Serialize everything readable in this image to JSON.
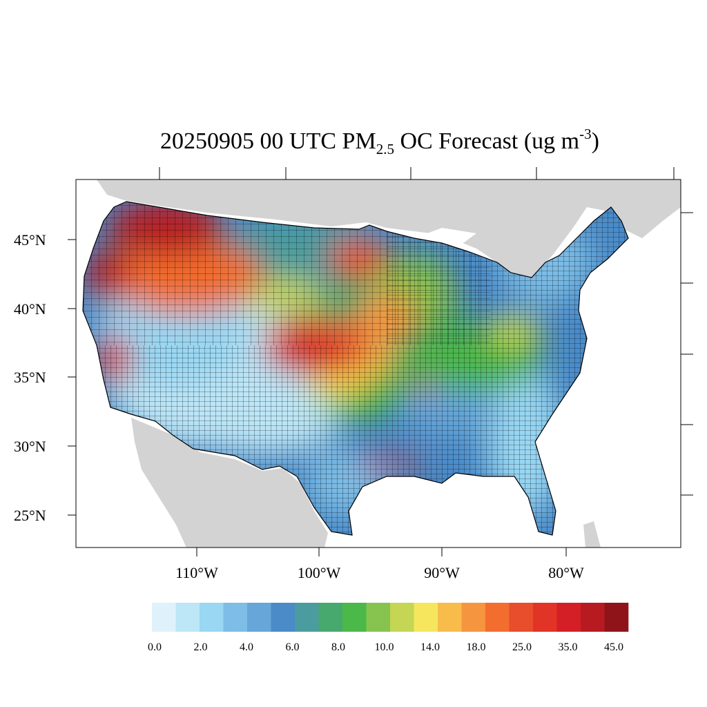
{
  "title": {
    "prefix": "20250905 00 UTC PM",
    "subscript": "2.5",
    "middle": " OC Forecast (ug m",
    "superscript": "-3",
    "suffix": ")"
  },
  "lat_labels": [
    "45°N",
    "40°N",
    "35°N",
    "30°N",
    "25°N"
  ],
  "lon_labels": [
    "110°W",
    "100°W",
    "90°W",
    "80°W"
  ],
  "colorbar": {
    "colors": [
      "#dff2fb",
      "#bde6f7",
      "#99d7f3",
      "#7dbde6",
      "#66a6d9",
      "#4a8bc8",
      "#4a9c9f",
      "#47a96d",
      "#4bb84a",
      "#86c44f",
      "#c4d654",
      "#f6e65e",
      "#f8bc4a",
      "#f6953f",
      "#f26d2e",
      "#e84e2b",
      "#e23327",
      "#d41f26",
      "#b71b21",
      "#8f1419"
    ],
    "labels": [
      "0.0",
      "2.0",
      "4.0",
      "6.0",
      "8.0",
      "10.0",
      "14.0",
      "18.0",
      "25.0",
      "35.0",
      "45.0"
    ]
  },
  "map_colors": {
    "land_outside": "#d3d3d3",
    "water": "#ffffff",
    "county_lines": "#000000"
  }
}
